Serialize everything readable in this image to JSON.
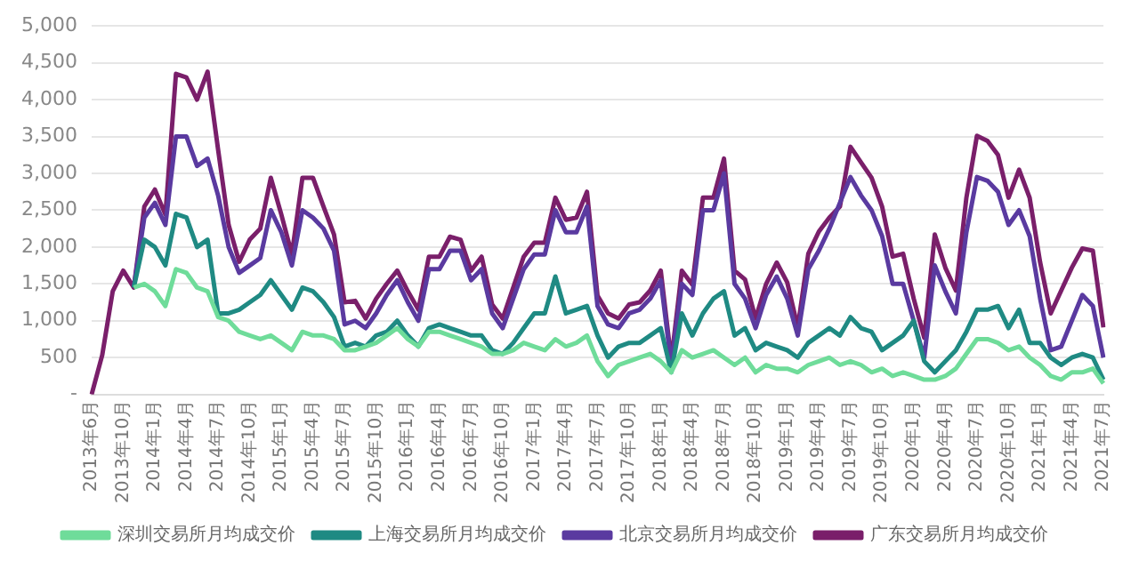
{
  "chart_data": {
    "type": "line",
    "categories": [
      "2013年6月",
      null,
      null,
      "2013年10月",
      null,
      null,
      "2014年1月",
      null,
      null,
      "2014年4月",
      null,
      null,
      "2014年7月",
      null,
      null,
      "2014年10月",
      null,
      null,
      "2015年1月",
      null,
      null,
      "2015年4月",
      null,
      null,
      "2015年7月",
      null,
      null,
      "2015年10月",
      null,
      null,
      "2016年1月",
      null,
      null,
      "2016年4月",
      null,
      null,
      "2016年7月",
      null,
      null,
      "2016年10月",
      null,
      null,
      "2017年1月",
      null,
      null,
      "2017年4月",
      null,
      null,
      "2017年7月",
      null,
      null,
      "2017年10月",
      null,
      null,
      "2018年1月",
      null,
      null,
      "2018年4月",
      null,
      null,
      "2018年7月",
      null,
      null,
      "2018年10月",
      null,
      null,
      "2019年1月",
      null,
      null,
      "2019年4月",
      null,
      null,
      "2019年7月",
      null,
      null,
      "2019年10月",
      null,
      null,
      "2020年1月",
      null,
      null,
      "2020年4月",
      null,
      null,
      "2020年7月",
      null,
      null,
      "2020年10月",
      null,
      null,
      "2021年1月",
      null,
      null,
      "2021年4月",
      null,
      null,
      "2021年7月"
    ],
    "series": [
      {
        "name": "深圳交易所月均成交价",
        "color": "#6fdc9a",
        "values": [
          null,
          null,
          null,
          null,
          1450,
          1500,
          1400,
          1200,
          1700,
          1650,
          1450,
          1400,
          1050,
          1000,
          850,
          800,
          750,
          800,
          700,
          600,
          850,
          800,
          800,
          750,
          600,
          600,
          650,
          700,
          800,
          900,
          750,
          650,
          850,
          850,
          800,
          750,
          700,
          650,
          550,
          550,
          600,
          700,
          650,
          600,
          750,
          650,
          700,
          800,
          450,
          250,
          400,
          450,
          500,
          550,
          450,
          300,
          600,
          500,
          550,
          600,
          500,
          400,
          500,
          300,
          400,
          350,
          350,
          300,
          400,
          450,
          500,
          400,
          450,
          400,
          300,
          350,
          250,
          300,
          250,
          200,
          200,
          250,
          350,
          550,
          750,
          750,
          700,
          600,
          650,
          500,
          400,
          250,
          200,
          300,
          300,
          350,
          150
        ]
      },
      {
        "name": "上海交易所月均成交价",
        "color": "#1f8a83",
        "values": [
          null,
          null,
          null,
          null,
          1450,
          2100,
          2000,
          1750,
          2450,
          2400,
          2000,
          2100,
          1100,
          1100,
          1150,
          1250,
          1350,
          1550,
          1350,
          1150,
          1450,
          1400,
          1250,
          1050,
          650,
          700,
          650,
          800,
          850,
          1000,
          800,
          650,
          900,
          950,
          900,
          850,
          800,
          800,
          600,
          550,
          700,
          900,
          1100,
          1100,
          1600,
          1100,
          1150,
          1200,
          800,
          500,
          650,
          700,
          700,
          800,
          900,
          300,
          1100,
          800,
          1100,
          1300,
          1400,
          800,
          900,
          600,
          700,
          650,
          600,
          500,
          700,
          800,
          900,
          800,
          1050,
          900,
          850,
          600,
          700,
          800,
          1000,
          450,
          300,
          450,
          600,
          850,
          1150,
          1150,
          1200,
          900,
          1150,
          700,
          700,
          500,
          400,
          500,
          550,
          500,
          200
        ]
      },
      {
        "name": "北京交易所月均成交价",
        "color": "#5a3aa0",
        "values": [
          null,
          null,
          null,
          null,
          1450,
          2400,
          2600,
          2300,
          3500,
          3500,
          3100,
          3200,
          2700,
          2000,
          1650,
          1750,
          1850,
          2500,
          2200,
          1750,
          2500,
          2400,
          2250,
          1950,
          950,
          1000,
          900,
          1100,
          1350,
          1550,
          1250,
          1000,
          1700,
          1700,
          1950,
          1950,
          1550,
          1700,
          1100,
          900,
          1300,
          1700,
          1900,
          1900,
          2500,
          2200,
          2200,
          2550,
          1200,
          950,
          900,
          1100,
          1150,
          1300,
          1550,
          400,
          1500,
          1350,
          2500,
          2500,
          3000,
          1500,
          1300,
          900,
          1350,
          1600,
          1300,
          800,
          1700,
          1950,
          2250,
          2600,
          2950,
          2700,
          2500,
          2150,
          1500,
          1500,
          1000,
          500,
          1750,
          1400,
          1100,
          2200,
          2950,
          2900,
          2750,
          2300,
          2500,
          2150,
          1300,
          600,
          650,
          1000,
          1350,
          1200,
          500
        ]
      },
      {
        "name": "广东交易所月均成交价",
        "color": "#7a1f6a",
        "values": [
          0,
          530,
          1400,
          1680,
          1450,
          2550,
          2780,
          2440,
          4350,
          4300,
          4000,
          4380,
          3320,
          2300,
          1800,
          2100,
          2250,
          2940,
          2440,
          1900,
          2940,
          2940,
          2550,
          2170,
          1250,
          1270,
          1030,
          1300,
          1500,
          1680,
          1400,
          1150,
          1870,
          1870,
          2140,
          2100,
          1680,
          1870,
          1220,
          1030,
          1450,
          1870,
          2060,
          2060,
          2670,
          2370,
          2400,
          2750,
          1340,
          1100,
          1030,
          1220,
          1250,
          1410,
          1680,
          460,
          1680,
          1490,
          2670,
          2670,
          3200,
          1680,
          1560,
          1030,
          1500,
          1790,
          1520,
          910,
          1910,
          2210,
          2400,
          2550,
          3360,
          3150,
          2940,
          2550,
          1870,
          1910,
          1300,
          770,
          2170,
          1720,
          1410,
          2670,
          3510,
          3440,
          3250,
          2670,
          3050,
          2670,
          1790,
          1100,
          1410,
          1720,
          1980,
          1950,
          910
        ]
      }
    ],
    "ylim": [
      0,
      5000
    ],
    "yticks": [
      {
        "value": 0,
        "label": "-"
      },
      {
        "value": 500,
        "label": "500"
      },
      {
        "value": 1000,
        "label": "1,000"
      },
      {
        "value": 1500,
        "label": "1,500"
      },
      {
        "value": 2000,
        "label": "2,000"
      },
      {
        "value": 2500,
        "label": "2,500"
      },
      {
        "value": 3000,
        "label": "3,000"
      },
      {
        "value": 3500,
        "label": "3,500"
      },
      {
        "value": 4000,
        "label": "4,000"
      },
      {
        "value": 4500,
        "label": "4,500"
      },
      {
        "value": 5000,
        "label": "5,000"
      }
    ],
    "grid": "y",
    "legend": "bottom",
    "marker": "none",
    "line_style": "solid"
  }
}
